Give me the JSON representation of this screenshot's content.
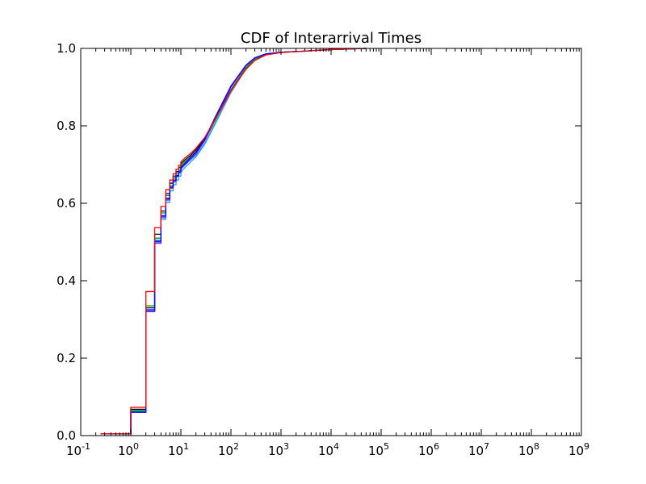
{
  "chart_data": {
    "type": "line",
    "title": "CDF of Interarrival Times",
    "xlabel": "",
    "ylabel": "",
    "x_scale": "log",
    "xlim": [
      0.1,
      1000000000
    ],
    "ylim": [
      0.0,
      1.0
    ],
    "grid": false,
    "x_tick_labels": [
      {
        "value": 0.1,
        "base": "10",
        "exp": "-1"
      },
      {
        "value": 1,
        "base": "10",
        "exp": "0"
      },
      {
        "value": 10,
        "base": "10",
        "exp": "1"
      },
      {
        "value": 100,
        "base": "10",
        "exp": "2"
      },
      {
        "value": 1000,
        "base": "10",
        "exp": "3"
      },
      {
        "value": 10000,
        "base": "10",
        "exp": "4"
      },
      {
        "value": 100000,
        "base": "10",
        "exp": "5"
      },
      {
        "value": 1000000,
        "base": "10",
        "exp": "6"
      },
      {
        "value": 10000000,
        "base": "10",
        "exp": "7"
      },
      {
        "value": 100000000,
        "base": "10",
        "exp": "8"
      },
      {
        "value": 1000000000,
        "base": "10",
        "exp": "9"
      }
    ],
    "y_tick_labels": [
      "0.0",
      "0.2",
      "0.4",
      "0.6",
      "0.8",
      "1.0"
    ],
    "series": [
      {
        "color": "#000000",
        "points": [
          [
            0.25,
            0.005
          ],
          [
            1,
            0.005
          ],
          [
            1,
            0.068
          ],
          [
            2,
            0.068
          ],
          [
            2,
            0.33
          ],
          [
            3,
            0.33
          ],
          [
            3,
            0.52
          ],
          [
            4,
            0.52
          ],
          [
            4,
            0.58
          ],
          [
            5,
            0.58
          ],
          [
            5,
            0.625
          ],
          [
            6,
            0.625
          ],
          [
            6,
            0.652
          ],
          [
            7,
            0.652
          ],
          [
            7,
            0.67
          ],
          [
            8,
            0.67
          ],
          [
            8,
            0.682
          ],
          [
            9,
            0.682
          ],
          [
            9,
            0.693
          ],
          [
            10,
            0.693
          ],
          [
            10,
            0.702
          ],
          [
            12,
            0.712
          ],
          [
            15,
            0.722
          ],
          [
            20,
            0.738
          ],
          [
            30,
            0.768
          ],
          [
            50,
            0.82
          ],
          [
            100,
            0.893
          ],
          [
            200,
            0.95
          ],
          [
            300,
            0.972
          ],
          [
            500,
            0.985
          ],
          [
            1000,
            0.99
          ],
          [
            3000,
            0.993
          ],
          [
            10000,
            0.997
          ],
          [
            50000,
            1.0
          ]
        ]
      },
      {
        "color": "#00bfbf",
        "points": [
          [
            0.25,
            0.005
          ],
          [
            1,
            0.005
          ],
          [
            1,
            0.062
          ],
          [
            2,
            0.062
          ],
          [
            2,
            0.325
          ],
          [
            3,
            0.325
          ],
          [
            3,
            0.505
          ],
          [
            4,
            0.505
          ],
          [
            4,
            0.562
          ],
          [
            5,
            0.562
          ],
          [
            5,
            0.607
          ],
          [
            6,
            0.607
          ],
          [
            6,
            0.638
          ],
          [
            7,
            0.638
          ],
          [
            7,
            0.655
          ],
          [
            8,
            0.655
          ],
          [
            8,
            0.668
          ],
          [
            9,
            0.668
          ],
          [
            9,
            0.678
          ],
          [
            10,
            0.678
          ],
          [
            10,
            0.688
          ],
          [
            12,
            0.698
          ],
          [
            15,
            0.71
          ],
          [
            20,
            0.724
          ],
          [
            30,
            0.755
          ],
          [
            50,
            0.81
          ],
          [
            100,
            0.887
          ],
          [
            200,
            0.948
          ],
          [
            300,
            0.972
          ],
          [
            500,
            0.985
          ],
          [
            1000,
            0.99
          ],
          [
            3000,
            0.993
          ],
          [
            10000,
            0.997
          ],
          [
            50000,
            1.0
          ]
        ]
      },
      {
        "color": "#3399ff",
        "points": [
          [
            0.25,
            0.005
          ],
          [
            1,
            0.005
          ],
          [
            1,
            0.06
          ],
          [
            2,
            0.06
          ],
          [
            2,
            0.322
          ],
          [
            3,
            0.322
          ],
          [
            3,
            0.5
          ],
          [
            4,
            0.5
          ],
          [
            4,
            0.558
          ],
          [
            5,
            0.558
          ],
          [
            5,
            0.602
          ],
          [
            6,
            0.602
          ],
          [
            6,
            0.632
          ],
          [
            7,
            0.632
          ],
          [
            7,
            0.648
          ],
          [
            8,
            0.648
          ],
          [
            8,
            0.66
          ],
          [
            9,
            0.66
          ],
          [
            9,
            0.67
          ],
          [
            10,
            0.67
          ],
          [
            10,
            0.68
          ],
          [
            12,
            0.692
          ],
          [
            15,
            0.704
          ],
          [
            20,
            0.72
          ],
          [
            30,
            0.752
          ],
          [
            50,
            0.808
          ],
          [
            100,
            0.886
          ],
          [
            200,
            0.948
          ],
          [
            300,
            0.972
          ],
          [
            500,
            0.985
          ],
          [
            1000,
            0.99
          ],
          [
            3000,
            0.993
          ],
          [
            10000,
            0.997
          ],
          [
            50000,
            1.0
          ]
        ]
      },
      {
        "color": "#00a000",
        "points": [
          [
            0.25,
            0.005
          ],
          [
            1,
            0.005
          ],
          [
            1,
            0.065
          ],
          [
            2,
            0.065
          ],
          [
            2,
            0.335
          ],
          [
            3,
            0.335
          ],
          [
            3,
            0.51
          ],
          [
            4,
            0.51
          ],
          [
            4,
            0.575
          ],
          [
            5,
            0.575
          ],
          [
            5,
            0.62
          ],
          [
            6,
            0.62
          ],
          [
            6,
            0.645
          ],
          [
            7,
            0.645
          ],
          [
            7,
            0.665
          ],
          [
            8,
            0.665
          ],
          [
            8,
            0.678
          ],
          [
            9,
            0.678
          ],
          [
            9,
            0.688
          ],
          [
            10,
            0.688
          ],
          [
            10,
            0.697
          ],
          [
            12,
            0.707
          ],
          [
            15,
            0.718
          ],
          [
            20,
            0.733
          ],
          [
            30,
            0.763
          ],
          [
            50,
            0.817
          ],
          [
            100,
            0.892
          ],
          [
            200,
            0.95
          ],
          [
            300,
            0.972
          ],
          [
            500,
            0.985
          ],
          [
            1000,
            0.99
          ],
          [
            3000,
            0.993
          ],
          [
            10000,
            0.997
          ],
          [
            50000,
            1.0
          ]
        ]
      },
      {
        "color": "#8000ff",
        "points": [
          [
            0.25,
            0.005
          ],
          [
            1,
            0.005
          ],
          [
            1,
            0.06
          ],
          [
            2,
            0.06
          ],
          [
            2,
            0.32
          ],
          [
            3,
            0.32
          ],
          [
            3,
            0.497
          ],
          [
            4,
            0.497
          ],
          [
            4,
            0.565
          ],
          [
            5,
            0.565
          ],
          [
            5,
            0.61
          ],
          [
            6,
            0.61
          ],
          [
            6,
            0.64
          ],
          [
            7,
            0.64
          ],
          [
            7,
            0.657
          ],
          [
            8,
            0.657
          ],
          [
            8,
            0.67
          ],
          [
            9,
            0.67
          ],
          [
            9,
            0.68
          ],
          [
            10,
            0.68
          ],
          [
            10,
            0.69
          ],
          [
            12,
            0.7
          ],
          [
            15,
            0.712
          ],
          [
            20,
            0.728
          ],
          [
            30,
            0.762
          ],
          [
            50,
            0.822
          ],
          [
            100,
            0.9
          ],
          [
            200,
            0.955
          ],
          [
            300,
            0.975
          ],
          [
            500,
            0.986
          ],
          [
            1000,
            0.99
          ],
          [
            3000,
            0.993
          ],
          [
            10000,
            0.997
          ],
          [
            50000,
            1.0
          ]
        ]
      },
      {
        "color": "#0000ff",
        "points": [
          [
            0.25,
            0.005
          ],
          [
            1,
            0.005
          ],
          [
            1,
            0.061
          ],
          [
            2,
            0.061
          ],
          [
            2,
            0.325
          ],
          [
            3,
            0.325
          ],
          [
            3,
            0.502
          ],
          [
            4,
            0.502
          ],
          [
            4,
            0.568
          ],
          [
            5,
            0.568
          ],
          [
            5,
            0.613
          ],
          [
            6,
            0.613
          ],
          [
            6,
            0.642
          ],
          [
            7,
            0.642
          ],
          [
            7,
            0.66
          ],
          [
            8,
            0.66
          ],
          [
            8,
            0.672
          ],
          [
            9,
            0.672
          ],
          [
            9,
            0.683
          ],
          [
            10,
            0.683
          ],
          [
            10,
            0.693
          ],
          [
            12,
            0.703
          ],
          [
            15,
            0.716
          ],
          [
            20,
            0.732
          ],
          [
            30,
            0.766
          ],
          [
            50,
            0.826
          ],
          [
            100,
            0.903
          ],
          [
            200,
            0.957
          ],
          [
            300,
            0.976
          ],
          [
            500,
            0.986
          ],
          [
            1000,
            0.99
          ],
          [
            3000,
            0.993
          ],
          [
            10000,
            0.997
          ],
          [
            50000,
            1.0
          ]
        ]
      },
      {
        "color": "#ff0000",
        "points": [
          [
            0.25,
            0.005
          ],
          [
            1,
            0.005
          ],
          [
            1,
            0.073
          ],
          [
            2,
            0.073
          ],
          [
            2,
            0.372
          ],
          [
            3,
            0.372
          ],
          [
            3,
            0.537
          ],
          [
            4,
            0.537
          ],
          [
            4,
            0.592
          ],
          [
            5,
            0.592
          ],
          [
            5,
            0.635
          ],
          [
            6,
            0.635
          ],
          [
            6,
            0.66
          ],
          [
            7,
            0.66
          ],
          [
            7,
            0.676
          ],
          [
            8,
            0.676
          ],
          [
            8,
            0.688
          ],
          [
            9,
            0.688
          ],
          [
            9,
            0.698
          ],
          [
            10,
            0.698
          ],
          [
            10,
            0.707
          ],
          [
            12,
            0.717
          ],
          [
            15,
            0.727
          ],
          [
            20,
            0.742
          ],
          [
            30,
            0.77
          ],
          [
            50,
            0.82
          ],
          [
            100,
            0.89
          ],
          [
            200,
            0.946
          ],
          [
            300,
            0.969
          ],
          [
            500,
            0.983
          ],
          [
            1000,
            0.989
          ],
          [
            3000,
            0.993
          ],
          [
            10000,
            0.997
          ],
          [
            50000,
            1.0
          ]
        ]
      }
    ]
  }
}
